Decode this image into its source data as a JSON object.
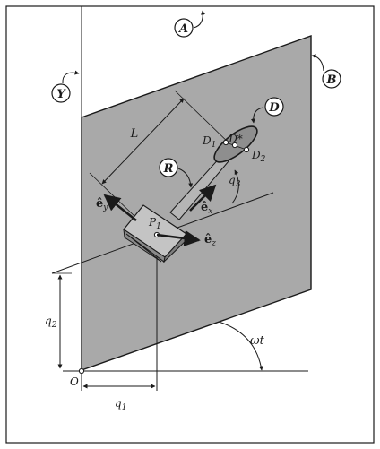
{
  "labels": {
    "A": "A",
    "B": "B",
    "Y": "Y",
    "D": "D",
    "R": "R",
    "L": "L",
    "D_star": "D*",
    "D1": "D",
    "D1_sub": "1",
    "D2": "D",
    "D2_sub": "2",
    "P1": "P",
    "P1_sub": "1",
    "ey": "ê",
    "ey_sub": "y",
    "ex": "ê",
    "ex_sub": "x",
    "ez": "ê",
    "ez_sub": "z",
    "q3": "q",
    "q3_sub": "3",
    "q2": "q",
    "q2_sub": "2",
    "q1": "q",
    "q1_sub": "1",
    "omega_t": "ωt",
    "O": "O"
  },
  "colors": {
    "plate": "#a9a9a9",
    "block_top": "#c4c4c4",
    "block_front": "#9a9a9a",
    "block_side": "#7d7d7d",
    "disk": "#8e8e8e",
    "ink": "#1a1a1a"
  }
}
